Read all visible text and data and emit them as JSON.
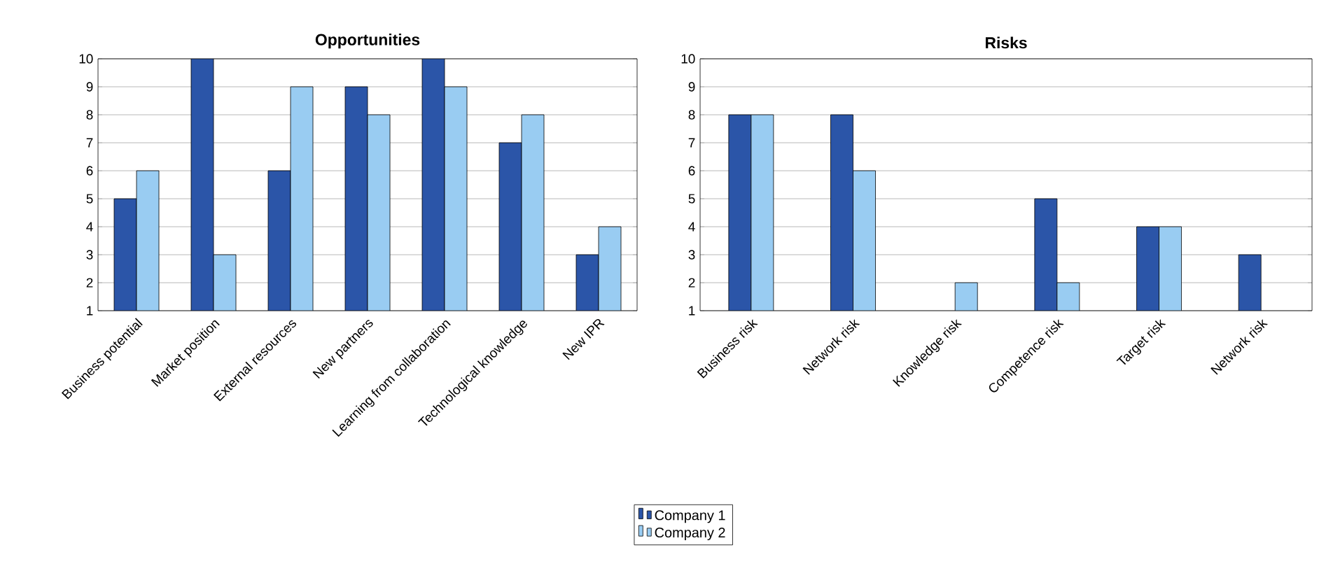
{
  "chart_data": [
    {
      "type": "bar",
      "title": "Opportunities",
      "categories": [
        "Business potential",
        "Market position",
        "External resources",
        "New partners",
        "Learning from collaboration",
        "Technological knowledge",
        "New IPR"
      ],
      "series": [
        {
          "name": "Company 1",
          "color": "#2b55a8",
          "values": [
            5,
            10,
            6,
            9,
            10,
            7,
            3
          ]
        },
        {
          "name": "Company 2",
          "color": "#99ccf2",
          "values": [
            6,
            3,
            9,
            8,
            9,
            8,
            4
          ]
        }
      ],
      "ylim": [
        1,
        10
      ],
      "yticks": [
        1,
        2,
        3,
        4,
        5,
        6,
        7,
        8,
        9,
        10
      ],
      "grid": "y",
      "legend": "bottom"
    },
    {
      "type": "bar",
      "title": "Risks",
      "categories": [
        "Business risk",
        "Network risk",
        "Knowledge risk",
        "Competence risk",
        "Target risk",
        "Network risk"
      ],
      "series": [
        {
          "color": "#2b55a8",
          "values": [
            8,
            8,
            null,
            5,
            4,
            3
          ]
        },
        {
          "color": "#99ccf2",
          "values": [
            8,
            6,
            2,
            2,
            4,
            null
          ]
        }
      ],
      "ylim": [
        1,
        10
      ],
      "yticks": [
        1,
        2,
        3,
        4,
        5,
        6,
        7,
        8,
        9,
        10
      ],
      "grid": "y"
    }
  ]
}
